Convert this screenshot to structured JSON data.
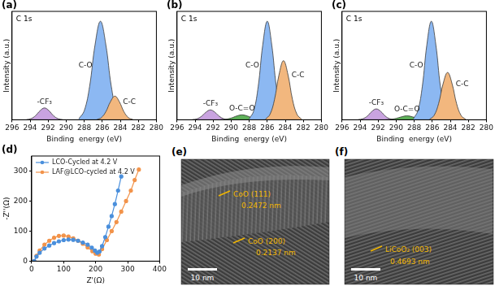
{
  "chart_data": [
    {
      "panel": "(a)",
      "type": "line",
      "title": "C 1s",
      "x_label": "Binding  energy (eV)",
      "y_label": "Intensity (a.u.)",
      "xlim": [
        296,
        280
      ],
      "xticks": [
        296,
        294,
        292,
        290,
        288,
        286,
        284,
        282,
        280
      ],
      "ylim": [
        0,
        110
      ],
      "tick_labels": "x",
      "series": [
        {
          "name": "-CF₃",
          "color": "#c9a3e0",
          "x": [
            290.4,
            290.9,
            291.4,
            291.9,
            292.4,
            292.9,
            293.4,
            293.9,
            294.4
          ],
          "values": [
            0.1,
            1.1,
            4.1,
            9.1,
            12,
            9.1,
            4.1,
            1.1,
            0.1
          ]
        },
        {
          "name": "C-O",
          "color": "#8cb8f2",
          "x": [
            283.8,
            284.4,
            285.0,
            285.6,
            286.2,
            286.8,
            287.4,
            288.0,
            288.6
          ],
          "values": [
            1,
            9,
            34,
            76,
            100,
            76,
            34,
            9,
            1
          ]
        },
        {
          "name": "C-C",
          "color": "#f2b77e",
          "x": [
            282.6,
            283.1,
            283.6,
            284.1,
            284.6,
            285.1,
            285.6,
            286.1,
            286.6
          ],
          "values": [
            0.2,
            2.2,
            8.2,
            18.2,
            24,
            18.2,
            8.2,
            2.2,
            0.2
          ]
        }
      ]
    },
    {
      "panel": "(b)",
      "type": "line",
      "title": "C 1s",
      "x_label": "Binding  energy (eV)",
      "y_label": "Intensity (a.u.)",
      "xlim": [
        296,
        280
      ],
      "xticks": [
        296,
        294,
        292,
        290,
        288,
        286,
        284,
        282,
        280
      ],
      "ylim": [
        0,
        110
      ],
      "tick_labels": "x",
      "series": [
        {
          "name": "-CF₃",
          "color": "#c9a3e0",
          "x": [
            290.3,
            290.8,
            291.3,
            291.8,
            292.3,
            292.8,
            293.3,
            293.8,
            294.3
          ],
          "values": [
            0.1,
            0.9,
            3.4,
            7.6,
            10,
            7.6,
            3.4,
            0.9,
            0.1
          ]
        },
        {
          "name": "O-C=O",
          "color": "#5fb25a",
          "x": [
            286.4,
            287.0,
            287.6,
            288.2,
            288.8,
            289.4,
            290.0,
            290.6,
            291.2
          ],
          "values": [
            0.1,
            0.5,
            1.7,
            3.8,
            5,
            3.8,
            1.7,
            0.5,
            0.1
          ]
        },
        {
          "name": "C-O",
          "color": "#8cb8f2",
          "x": [
            284.0,
            284.5,
            285.0,
            285.5,
            286.0,
            286.5,
            287.0,
            287.5,
            288.0
          ],
          "values": [
            1,
            9,
            34,
            76,
            100,
            76,
            34,
            9,
            1
          ]
        },
        {
          "name": "C-C",
          "color": "#f2b77e",
          "x": [
            282.2,
            282.7,
            283.2,
            283.7,
            284.2,
            284.7,
            285.2,
            285.7,
            286.2
          ],
          "values": [
            0.6,
            5.4,
            20.4,
            45.6,
            60,
            45.6,
            20.4,
            5.4,
            0.6
          ]
        }
      ]
    },
    {
      "panel": "(c)",
      "type": "line",
      "title": "C 1s",
      "x_label": "Binding  energy (eV)",
      "y_label": "Intensity (a.u.)",
      "xlim": [
        296,
        280
      ],
      "xticks": [
        296,
        294,
        292,
        290,
        288,
        286,
        284,
        282,
        280
      ],
      "ylim": [
        0,
        110
      ],
      "tick_labels": "x",
      "series": [
        {
          "name": "-CF₃",
          "color": "#c9a3e0",
          "x": [
            290.2,
            290.7,
            291.2,
            291.7,
            292.2,
            292.7,
            293.2,
            293.7,
            294.2
          ],
          "values": [
            0.1,
            1,
            3.7,
            8.4,
            11,
            8.4,
            3.7,
            1,
            0.1
          ]
        },
        {
          "name": "O-C=O",
          "color": "#5fb25a",
          "x": [
            286.4,
            287.0,
            287.6,
            288.2,
            288.8,
            289.4,
            290.0,
            290.6,
            291.2
          ],
          "values": [
            0,
            0.4,
            1.4,
            3,
            4,
            3,
            1.4,
            0.4,
            0
          ]
        },
        {
          "name": "C-O",
          "color": "#8cb8f2",
          "x": [
            284.1,
            284.6,
            285.1,
            285.6,
            286.1,
            286.6,
            287.1,
            287.6,
            288.1
          ],
          "values": [
            1,
            9,
            34,
            76,
            100,
            76,
            34,
            9,
            1
          ]
        },
        {
          "name": "C-C",
          "color": "#f2b77e",
          "x": [
            282.3,
            282.8,
            283.3,
            283.8,
            284.3,
            284.8,
            285.3,
            285.8,
            286.3
          ],
          "values": [
            0.5,
            4.3,
            16.3,
            36.5,
            48,
            36.5,
            16.3,
            4.3,
            0.5
          ]
        }
      ]
    },
    {
      "panel": "(d)",
      "type": "scatter",
      "x_label": "Z'(Ω)",
      "y_label": "-Z''(Ω)",
      "xlim": [
        0,
        400
      ],
      "xticks": [
        0,
        100,
        200,
        300,
        400
      ],
      "ylim": [
        0,
        350
      ],
      "yticks": [
        0,
        100,
        200,
        300
      ],
      "legend": "upper left",
      "series": [
        {
          "name": "LCO-Cycled at 4.2 V",
          "color": "#4a8fdc",
          "marker": "circle",
          "line_style": "solid",
          "x": [
            8,
            15,
            25,
            40,
            55,
            70,
            85,
            100,
            115,
            130,
            145,
            160,
            175,
            188,
            198,
            205,
            212,
            220,
            230,
            240,
            250,
            260,
            270,
            280
          ],
          "values": [
            0,
            15,
            28,
            42,
            52,
            60,
            66,
            70,
            72,
            71,
            68,
            62,
            55,
            45,
            35,
            28,
            32,
            50,
            80,
            115,
            150,
            190,
            235,
            282
          ]
        },
        {
          "name": "LAF@LCO-cycled at 4.2 V",
          "color": "#f2934a",
          "marker": "circle",
          "line_style": "solid",
          "x": [
            8,
            15,
            25,
            40,
            55,
            70,
            85,
            100,
            115,
            130,
            145,
            160,
            175,
            190,
            200,
            210,
            220,
            235,
            250,
            265,
            280,
            295,
            310,
            322,
            335
          ],
          "values": [
            0,
            18,
            35,
            55,
            68,
            78,
            84,
            85,
            82,
            76,
            68,
            58,
            46,
            33,
            25,
            22,
            40,
            70,
            100,
            130,
            165,
            200,
            235,
            270,
            305
          ]
        }
      ]
    }
  ],
  "images": [
    {
      "label": "(e)",
      "annotations": [
        "CoO (111)",
        "0.2472 nm",
        "CoO (200)",
        "0.2137 nm"
      ],
      "scale_bar": "10 nm"
    },
    {
      "label": "(f)",
      "annotations": [
        "LiCoO₂ (003)",
        "0.4693 nm"
      ],
      "scale_bar": "10 nm"
    }
  ]
}
